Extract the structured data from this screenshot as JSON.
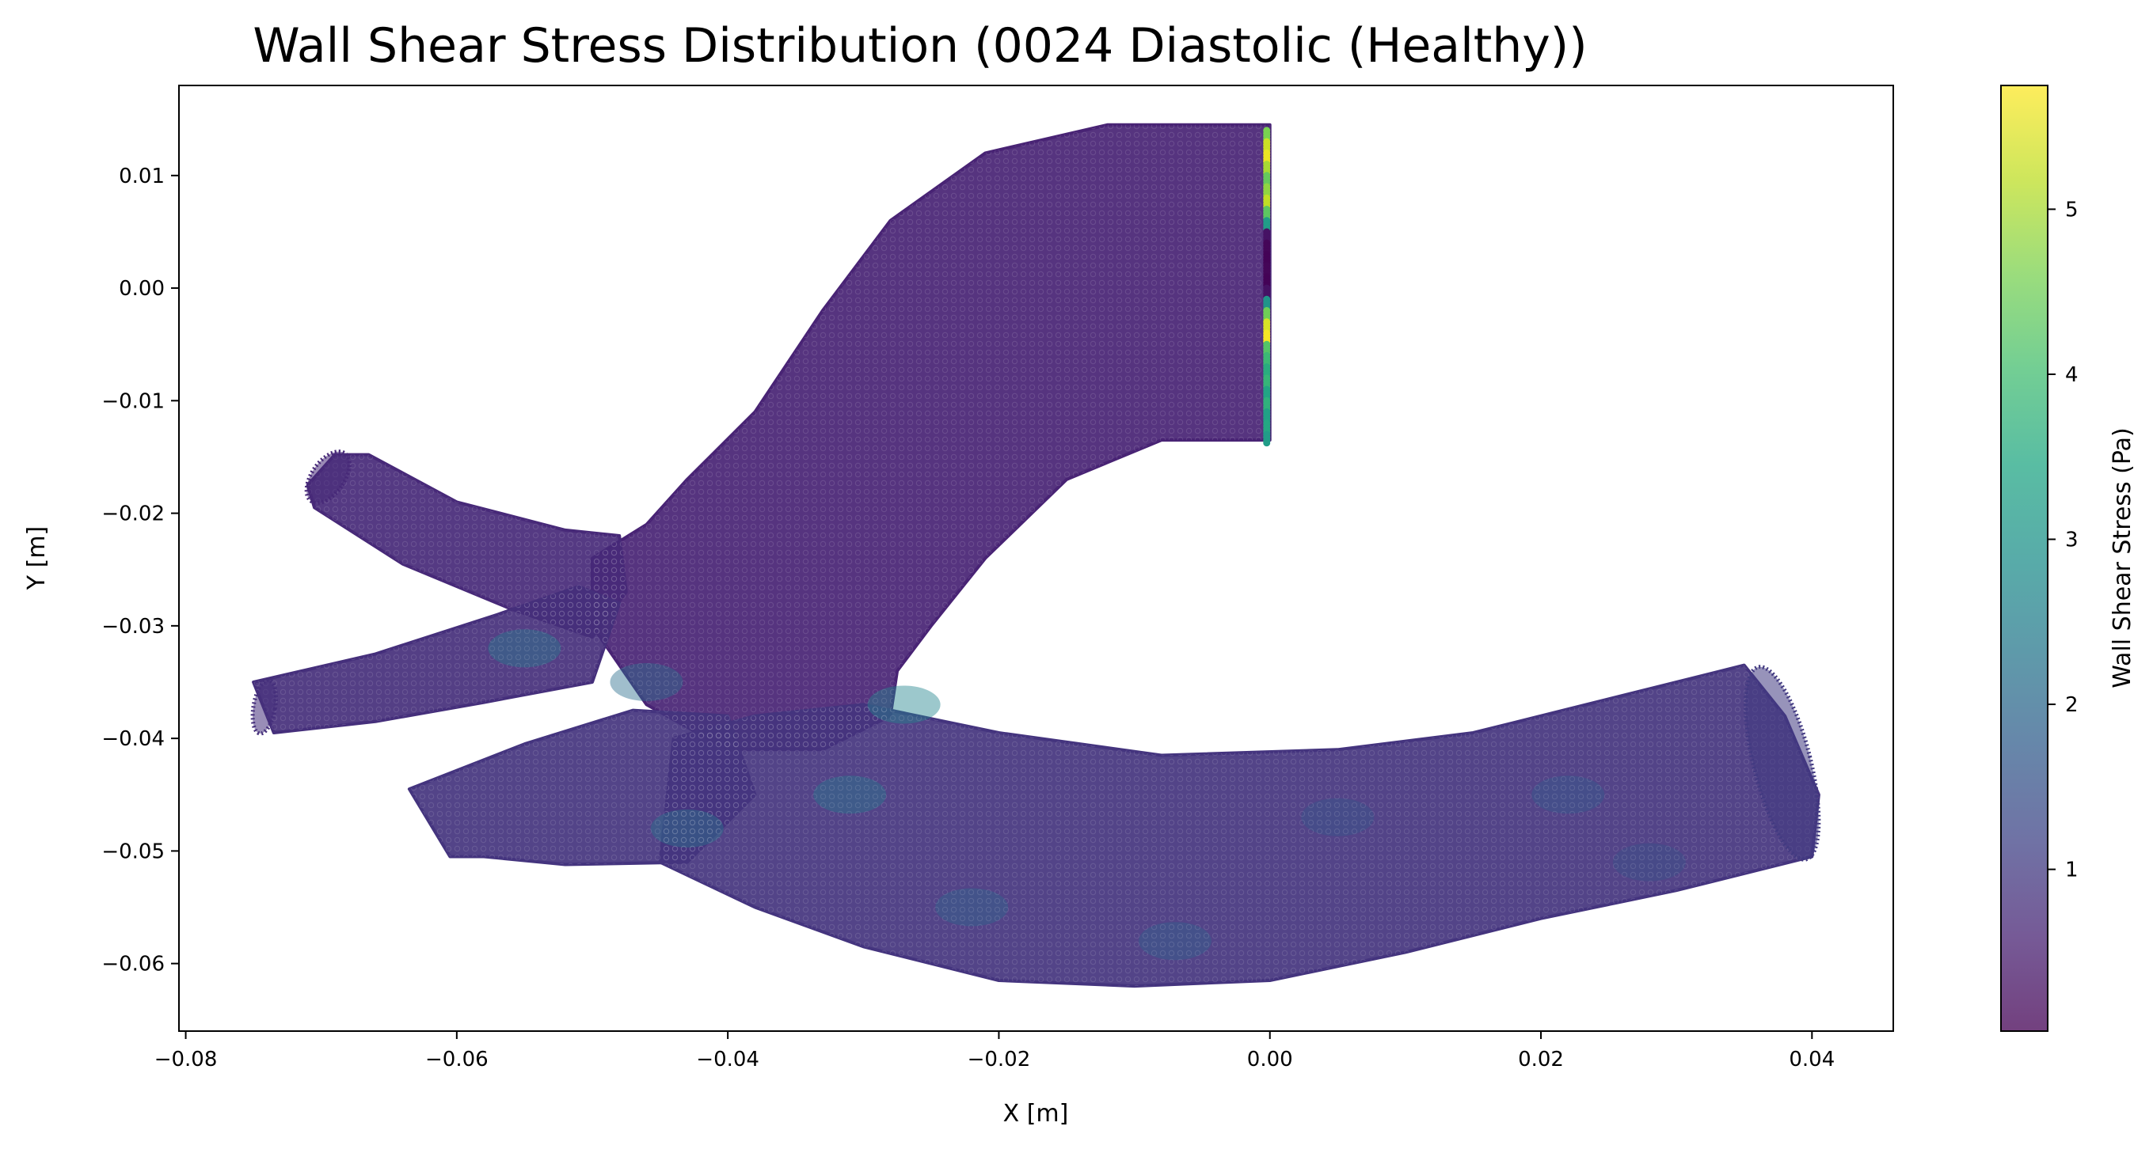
{
  "chart_data": {
    "type": "scatter",
    "title": "Wall Shear Stress Distribution (0024 Diastolic (Healthy))",
    "xlabel": "X [m]",
    "ylabel": "Y [m]",
    "xlim": [
      -0.0805,
      0.046
    ],
    "ylim": [
      -0.066,
      0.018
    ],
    "xticks": [
      -0.08,
      -0.06,
      -0.04,
      -0.02,
      0.0,
      0.02,
      0.04
    ],
    "xtick_labels": [
      "−0.08",
      "−0.06",
      "−0.04",
      "−0.02",
      "0.00",
      "0.02",
      "0.04"
    ],
    "yticks": [
      0.01,
      0.0,
      -0.01,
      -0.02,
      -0.03,
      -0.04,
      -0.05,
      -0.06
    ],
    "ytick_labels": [
      "0.01",
      "0.00",
      "−0.01",
      "−0.02",
      "−0.03",
      "−0.04",
      "−0.05",
      "−0.06"
    ],
    "grid": false,
    "colorbar": {
      "label": "Wall Shear Stress (Pa)",
      "range": [
        0.02,
        5.75
      ],
      "ticks": [
        1,
        2,
        3,
        4,
        5
      ],
      "tick_labels": [
        "1",
        "2",
        "3",
        "4",
        "5"
      ],
      "colormap": "viridis",
      "alpha": 0.75
    },
    "regions": [
      {
        "name": "ascending-aorta-arch",
        "points": [
          [
            -0.046,
            -0.021
          ],
          [
            -0.043,
            -0.017
          ],
          [
            -0.038,
            -0.011
          ],
          [
            -0.033,
            -0.002
          ],
          [
            -0.028,
            0.006
          ],
          [
            -0.021,
            0.012
          ],
          [
            -0.012,
            0.0145
          ],
          [
            0.0,
            0.0145
          ],
          [
            0.0,
            -0.0135
          ],
          [
            -0.008,
            -0.0135
          ],
          [
            -0.015,
            -0.017
          ],
          [
            -0.021,
            -0.024
          ],
          [
            -0.025,
            -0.03
          ],
          [
            -0.0275,
            -0.034
          ],
          [
            -0.028,
            -0.038
          ],
          [
            -0.033,
            -0.041
          ],
          [
            -0.04,
            -0.041
          ],
          [
            -0.046,
            -0.037
          ],
          [
            -0.05,
            -0.03
          ],
          [
            -0.05,
            -0.024
          ]
        ],
        "wss": 0.6
      },
      {
        "name": "descending-aorta",
        "points": [
          [
            -0.044,
            -0.04
          ],
          [
            -0.038,
            -0.038
          ],
          [
            -0.03,
            -0.037
          ],
          [
            -0.02,
            -0.0395
          ],
          [
            -0.008,
            -0.0415
          ],
          [
            0.005,
            -0.041
          ],
          [
            0.015,
            -0.0395
          ],
          [
            0.025,
            -0.0365
          ],
          [
            0.035,
            -0.0335
          ],
          [
            0.038,
            -0.038
          ],
          [
            0.0405,
            -0.045
          ],
          [
            0.04,
            -0.0505
          ],
          [
            0.03,
            -0.0535
          ],
          [
            0.02,
            -0.056
          ],
          [
            0.01,
            -0.059
          ],
          [
            0.0,
            -0.0615
          ],
          [
            -0.01,
            -0.062
          ],
          [
            -0.02,
            -0.0615
          ],
          [
            -0.03,
            -0.0585
          ],
          [
            -0.038,
            -0.055
          ],
          [
            -0.045,
            -0.051
          ]
        ],
        "wss": 0.9
      },
      {
        "name": "upper-branch",
        "points": [
          [
            -0.069,
            -0.0148
          ],
          [
            -0.0665,
            -0.0148
          ],
          [
            -0.06,
            -0.019
          ],
          [
            -0.052,
            -0.0215
          ],
          [
            -0.048,
            -0.022
          ],
          [
            -0.0475,
            -0.027
          ],
          [
            -0.05,
            -0.031
          ],
          [
            -0.056,
            -0.0285
          ],
          [
            -0.064,
            -0.0245
          ],
          [
            -0.0705,
            -0.0195
          ],
          [
            -0.071,
            -0.0175
          ]
        ],
        "wss": 0.7
      },
      {
        "name": "middle-branch",
        "points": [
          [
            -0.075,
            -0.035
          ],
          [
            -0.066,
            -0.0325
          ],
          [
            -0.057,
            -0.029
          ],
          [
            -0.051,
            -0.0265
          ],
          [
            -0.048,
            -0.028
          ],
          [
            -0.05,
            -0.035
          ],
          [
            -0.058,
            -0.0368
          ],
          [
            -0.066,
            -0.0385
          ],
          [
            -0.0735,
            -0.0395
          ]
        ],
        "wss": 0.8
      },
      {
        "name": "lower-branch",
        "points": [
          [
            -0.0635,
            -0.0445
          ],
          [
            -0.055,
            -0.0405
          ],
          [
            -0.047,
            -0.0375
          ],
          [
            -0.04,
            -0.038
          ],
          [
            -0.038,
            -0.045
          ],
          [
            -0.043,
            -0.051
          ],
          [
            -0.052,
            -0.0512
          ],
          [
            -0.058,
            -0.0505
          ],
          [
            -0.0605,
            -0.0505
          ]
        ],
        "wss": 0.9
      }
    ],
    "hotspots": [
      {
        "x": -0.031,
        "y": -0.045,
        "wss": 2.3
      },
      {
        "x": -0.022,
        "y": -0.055,
        "wss": 1.9
      },
      {
        "x": -0.046,
        "y": -0.035,
        "wss": 2.1
      },
      {
        "x": -0.055,
        "y": -0.032,
        "wss": 2.4
      },
      {
        "x": -0.007,
        "y": -0.058,
        "wss": 1.8
      },
      {
        "x": 0.005,
        "y": -0.047,
        "wss": 1.6
      },
      {
        "x": 0.022,
        "y": -0.045,
        "wss": 1.7
      },
      {
        "x": -0.043,
        "y": -0.048,
        "wss": 2.2
      },
      {
        "x": -0.027,
        "y": -0.037,
        "wss": 2.6
      },
      {
        "x": 0.028,
        "y": -0.051,
        "wss": 1.5
      }
    ],
    "outlet_edge": [
      {
        "y": 0.014,
        "wss": 4.6
      },
      {
        "y": 0.013,
        "wss": 5.3
      },
      {
        "y": 0.012,
        "wss": 5.6
      },
      {
        "y": 0.011,
        "wss": 5.0
      },
      {
        "y": 0.01,
        "wss": 4.4
      },
      {
        "y": 0.009,
        "wss": 4.8
      },
      {
        "y": 0.008,
        "wss": 5.2
      },
      {
        "y": 0.007,
        "wss": 4.3
      },
      {
        "y": 0.006,
        "wss": 3.2
      },
      {
        "y": 0.005,
        "wss": 0.3
      },
      {
        "y": 0.004,
        "wss": 0.1
      },
      {
        "y": 0.003,
        "wss": 0.05
      },
      {
        "y": 0.002,
        "wss": 0.1
      },
      {
        "y": 0.001,
        "wss": 0.05
      },
      {
        "y": 0.0,
        "wss": 0.3
      },
      {
        "y": -0.001,
        "wss": 3.0
      },
      {
        "y": -0.002,
        "wss": 4.5
      },
      {
        "y": -0.003,
        "wss": 5.4
      },
      {
        "y": -0.004,
        "wss": 5.7
      },
      {
        "y": -0.005,
        "wss": 4.2
      },
      {
        "y": -0.006,
        "wss": 3.9
      },
      {
        "y": -0.007,
        "wss": 3.6
      },
      {
        "y": -0.008,
        "wss": 3.8
      },
      {
        "y": -0.009,
        "wss": 3.4
      },
      {
        "y": -0.01,
        "wss": 3.7
      },
      {
        "y": -0.011,
        "wss": 3.3
      },
      {
        "y": -0.012,
        "wss": 3.5
      },
      {
        "y": -0.013,
        "wss": 3.2
      }
    ],
    "outlet_ellipses": [
      {
        "name": "descending-outlet",
        "cx": 0.0378,
        "cy": -0.0422,
        "rx": 0.0021,
        "ry": 0.0088,
        "rotate_deg": -14,
        "wss": 1.0
      },
      {
        "name": "upper-branch-outlet",
        "cx": -0.0695,
        "cy": -0.0168,
        "rx": 0.0012,
        "ry": 0.0026,
        "rotate_deg": 35,
        "wss": 0.7
      },
      {
        "name": "middle-branch-outlet",
        "cx": -0.0742,
        "cy": -0.0372,
        "rx": 0.0008,
        "ry": 0.0024,
        "rotate_deg": 10,
        "wss": 0.8
      }
    ]
  }
}
